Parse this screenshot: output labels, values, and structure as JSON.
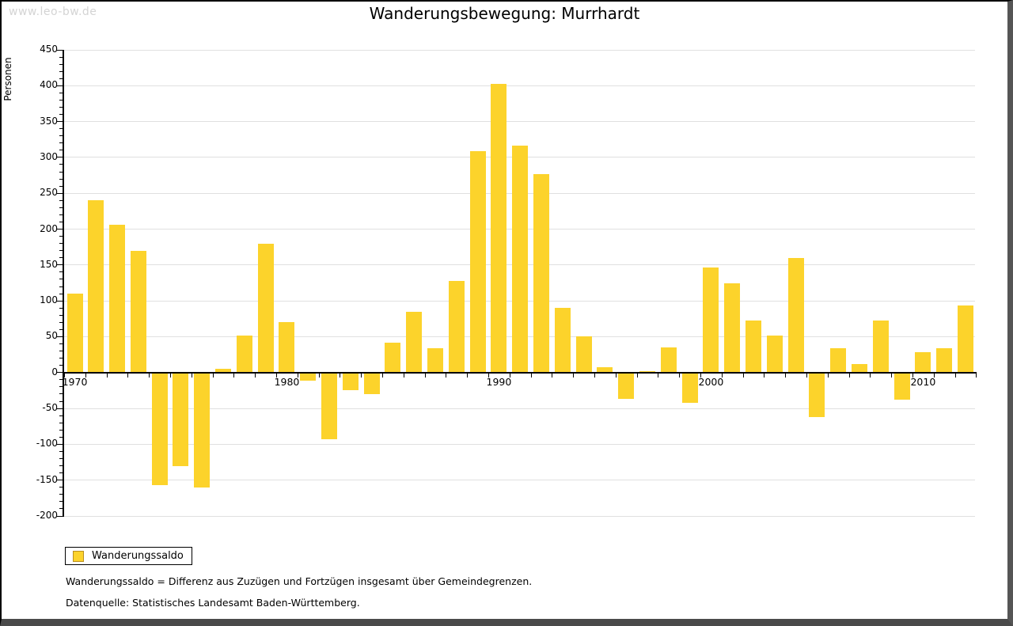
{
  "watermark": "www.leo-bw.de",
  "title": "Wanderungsbewegung: Murrhardt",
  "ylabel": "Personen",
  "legend": {
    "label": "Wanderungssaldo"
  },
  "footnotes": [
    "Wanderungssaldo = Differenz aus Zuzügen und Fortzügen insgesamt über Gemeindegrenzen.",
    "Datenquelle: Statistisches Landesamt Baden-Württemberg."
  ],
  "colors": {
    "bar": "#FCD32B",
    "bar_border": "#BA8F1E",
    "grid": "#E0E0E0",
    "axis": "#000000",
    "watermark": "#D4D4D4",
    "text": "#000000"
  },
  "chart_data": {
    "type": "bar",
    "title": "Wanderungsbewegung: Murrhardt",
    "xlabel": "",
    "ylabel": "Personen",
    "series_name": "Wanderungssaldo",
    "x": [
      1970,
      1971,
      1972,
      1973,
      1974,
      1975,
      1976,
      1977,
      1978,
      1979,
      1980,
      1981,
      1982,
      1983,
      1984,
      1985,
      1986,
      1987,
      1988,
      1989,
      1990,
      1991,
      1992,
      1993,
      1994,
      1995,
      1996,
      1997,
      1998,
      1999,
      2000,
      2001,
      2002,
      2003,
      2004,
      2005,
      2006,
      2007,
      2008,
      2009,
      2010,
      2011,
      2012
    ],
    "values": [
      110,
      240,
      206,
      170,
      -157,
      -130,
      -160,
      5,
      52,
      180,
      70,
      -11,
      -93,
      -24,
      -30,
      42,
      85,
      34,
      128,
      309,
      403,
      317,
      277,
      90,
      50,
      7,
      -37,
      2,
      35,
      -42,
      146,
      125,
      73,
      52,
      160,
      -62,
      34,
      12,
      73,
      -38,
      28,
      34,
      94
    ],
    "ylim": [
      -200,
      450
    ],
    "ytick_step": 50,
    "ytick_minor_step": 10,
    "xticks": [
      1970,
      1980,
      1990,
      2000,
      2010
    ],
    "grid": true,
    "legend_position": "bottom-left"
  }
}
